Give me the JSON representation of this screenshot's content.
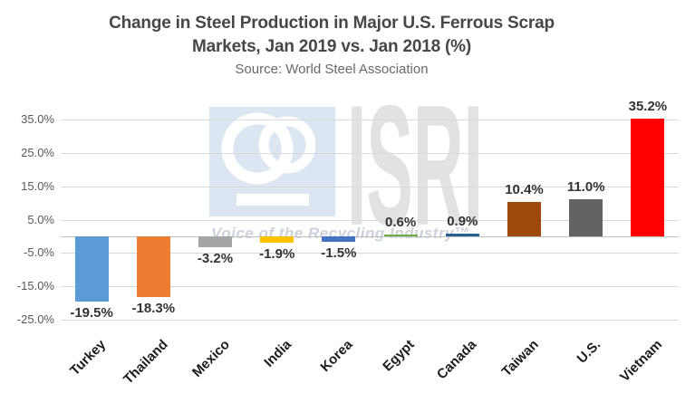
{
  "header": {
    "title_line1": "Change in Steel Production in Major U.S. Ferrous Scrap",
    "title_line2": "Markets, Jan 2019 vs. Jan 2018 (%)",
    "source": "Source: World Steel Association"
  },
  "watermark": {
    "wordmark": "ISRI",
    "tagline": "Voice of the Recycling Industry™",
    "logo_bg_color": "#dce6f2",
    "logo_glyph_color": "#ffffff",
    "wordmark_color": "#e2e2e2",
    "tagline_color": "#ccd3dc"
  },
  "colors": {
    "gridline": "#d9d9d9",
    "zero_axis": "#bfbfbf",
    "tick_label": "#595959",
    "title_text": "#474747",
    "value_label": "#333333",
    "category_label": "#1c1c1c"
  },
  "chart_data": {
    "type": "bar",
    "title": "Change in Steel Production in Major U.S. Ferrous Scrap Markets, Jan 2019 vs. Jan 2018 (%)",
    "subtitle": "Source: World Steel Association",
    "categories": [
      "Turkey",
      "Thailand",
      "Mexico",
      "India",
      "Korea",
      "Egypt",
      "Canada",
      "Taiwan",
      "U.S.",
      "Vietnam"
    ],
    "values": [
      -19.5,
      -18.3,
      -3.2,
      -1.9,
      -1.5,
      0.6,
      0.9,
      10.4,
      11.0,
      35.2
    ],
    "labels": [
      "-19.5%",
      "-18.3%",
      "-3.2%",
      "-1.9%",
      "-1.5%",
      "0.6%",
      "0.9%",
      "10.4%",
      "11.0%",
      "35.2%"
    ],
    "bar_colors": [
      "#5B9BD5",
      "#ED7D31",
      "#A5A5A5",
      "#FFC000",
      "#4472C4",
      "#70AD47",
      "#255E91",
      "#9E480E",
      "#636363",
      "#FF0000"
    ],
    "xlabel": "",
    "ylabel": "",
    "ylim": [
      -25,
      35
    ],
    "ytick_step": 10,
    "yticks": [
      "35.0%",
      "25.0%",
      "15.0%",
      "5.0%",
      "-5.0%",
      "-15.0%",
      "-25.0%"
    ],
    "grid": true,
    "legend": false,
    "data_label_position": "outside-end",
    "category_label_rotation_deg": -45
  }
}
